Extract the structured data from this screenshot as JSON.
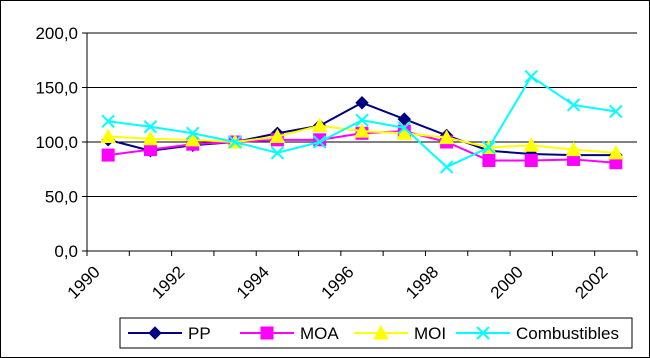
{
  "chart_data": {
    "type": "line",
    "x": [
      1990.5,
      1991.5,
      1992.5,
      1993.5,
      1994.5,
      1995.5,
      1996.5,
      1997.5,
      1998.5,
      1999.5,
      2000.5,
      2001.5,
      2002.5
    ],
    "xticks": [
      "1990",
      "1992",
      "1994",
      "1996",
      "1998",
      "2000",
      "2002"
    ],
    "xtick_values": [
      1990,
      1992,
      1994,
      1996,
      1998,
      2000,
      2002
    ],
    "xlim": [
      1990,
      2003
    ],
    "yticks": [
      "0,0",
      "50,0",
      "100,0",
      "150,0",
      "200,0"
    ],
    "ytick_values": [
      0,
      50,
      100,
      150,
      200
    ],
    "ylim": [
      0,
      200
    ],
    "grid": "horizontal",
    "legend_placement": "bottom",
    "series": [
      {
        "name": "PP",
        "color": "#000080",
        "marker": "diamond",
        "values": [
          102,
          92,
          97,
          100,
          108,
          115,
          136,
          121,
          106,
          92,
          89,
          88,
          88
        ]
      },
      {
        "name": "MOA",
        "color": "#FF00FF",
        "marker": "square",
        "values": [
          88,
          93,
          98,
          100,
          102,
          102,
          108,
          110,
          100,
          83,
          83,
          84,
          81
        ]
      },
      {
        "name": "MOI",
        "color": "#FFFF00",
        "marker": "triangle",
        "values": [
          105,
          103,
          102,
          100,
          105,
          115,
          110,
          108,
          104,
          95,
          97,
          93,
          90
        ]
      },
      {
        "name": "Combustibles",
        "color": "#00FFFF",
        "marker": "x",
        "values": [
          119,
          114,
          108,
          100,
          90,
          100,
          120,
          113,
          77,
          95,
          160,
          134,
          128
        ]
      }
    ]
  }
}
